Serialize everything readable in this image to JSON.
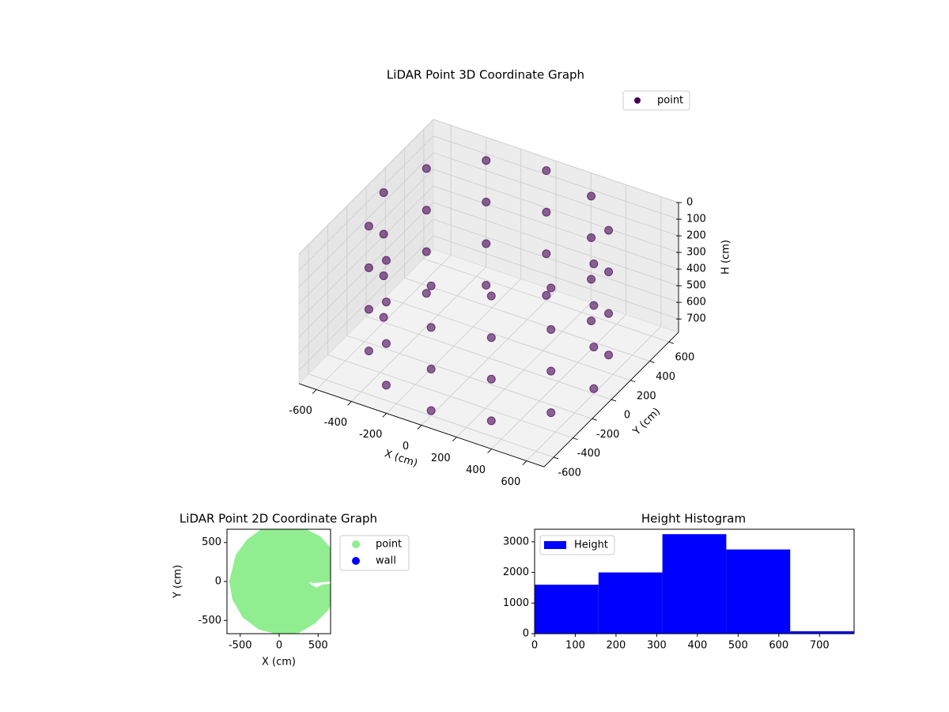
{
  "chart_data": [
    {
      "type": "scatter3d",
      "title": "LiDAR Point 3D Coordinate Graph",
      "x_label": "X (cm)",
      "y_label": "Y (cm)",
      "z_label": "H (cm)",
      "xlim": [
        -700,
        700
      ],
      "ylim": [
        -700,
        700
      ],
      "zlim": [
        0,
        780
      ],
      "z_inverted": true,
      "xticks": [
        -600,
        -400,
        -200,
        0,
        200,
        400,
        600
      ],
      "yticks": [
        -600,
        -400,
        -200,
        0,
        200,
        400,
        600
      ],
      "zticks": [
        0,
        100,
        200,
        300,
        400,
        500,
        600,
        700
      ],
      "grid": true,
      "legend": "upper right",
      "series": [
        {
          "name": "point",
          "color": "#440154",
          "x": [
            600,
            520,
            300,
            0,
            -300,
            -520,
            -600,
            -520,
            -300,
            0,
            300,
            520,
            600,
            520,
            300,
            0,
            -300,
            -520,
            -600,
            -520,
            -300,
            0,
            300,
            520,
            600,
            520,
            300,
            0,
            -300,
            -520,
            -600,
            -520,
            -300,
            0,
            300,
            520,
            600,
            520,
            300,
            0,
            -300,
            -520,
            -600,
            -520,
            -300,
            0,
            300,
            520
          ],
          "y": [
            0,
            300,
            520,
            600,
            520,
            300,
            0,
            -300,
            -520,
            -600,
            -520,
            -300,
            0,
            300,
            520,
            600,
            520,
            300,
            0,
            -300,
            -520,
            -600,
            -520,
            -300,
            0,
            300,
            520,
            600,
            520,
            300,
            0,
            -300,
            -520,
            -600,
            -520,
            -300,
            0,
            300,
            520,
            600,
            520,
            300,
            0,
            -300,
            -520,
            -600,
            -520,
            -300
          ],
          "z": [
            0,
            0,
            0,
            0,
            0,
            0,
            0,
            0,
            0,
            0,
            0,
            0,
            250,
            250,
            250,
            250,
            250,
            250,
            250,
            250,
            250,
            250,
            250,
            250,
            500,
            500,
            500,
            500,
            500,
            500,
            500,
            500,
            500,
            500,
            500,
            500,
            750,
            750,
            750,
            750,
            750,
            750,
            750,
            750,
            750,
            750,
            750,
            750
          ]
        }
      ]
    },
    {
      "type": "scatter",
      "title": "LiDAR Point 2D Coordinate Graph",
      "x_label": "X (cm)",
      "y_label": "Y (cm)",
      "xlim": [
        -670,
        660
      ],
      "ylim": [
        -670,
        670
      ],
      "xticks": [
        -500,
        0,
        500
      ],
      "yticks": [
        -500,
        0,
        500
      ],
      "legend": "outside right",
      "series": [
        {
          "name": "point",
          "color": "#90ee90",
          "x": [
            -620,
            -580,
            -450,
            -250,
            0,
            250,
            450,
            620,
            660,
            660,
            560,
            480,
            400,
            330,
            450,
            660,
            660,
            520,
            300,
            -200,
            -400,
            -540
          ],
          "y": [
            0,
            -230,
            -450,
            -600,
            -660,
            -640,
            -520,
            -350,
            -250,
            -50,
            -60,
            -100,
            -60,
            30,
            0,
            20,
            400,
            560,
            670,
            670,
            520,
            330
          ]
        },
        {
          "name": "wall",
          "color": "#0000ff",
          "x": [],
          "y": []
        }
      ]
    },
    {
      "type": "histogram",
      "title": "Height Histogram",
      "xlim": [
        0,
        785
      ],
      "ylim": [
        0,
        3410
      ],
      "xticks": [
        0,
        100,
        200,
        300,
        400,
        500,
        600,
        700
      ],
      "yticks": [
        0,
        1000,
        2000,
        3000
      ],
      "legend": "upper left",
      "series": [
        {
          "name": "Height",
          "color": "#0000ff",
          "bins": [
            0,
            157,
            314,
            471,
            628,
            785
          ],
          "counts": [
            1600,
            2000,
            3250,
            2750,
            80
          ]
        }
      ]
    }
  ]
}
